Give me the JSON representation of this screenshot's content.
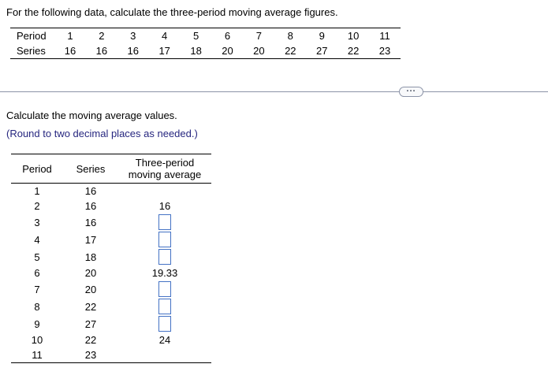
{
  "question": {
    "instruction": "For the following data, calculate the three-period moving average figures.",
    "top_table": {
      "period_label": "Period",
      "series_label": "Series",
      "periods": [
        "1",
        "2",
        "3",
        "4",
        "5",
        "6",
        "7",
        "8",
        "9",
        "10",
        "11"
      ],
      "series": [
        "16",
        "16",
        "16",
        "17",
        "18",
        "20",
        "20",
        "22",
        "27",
        "22",
        "23"
      ]
    }
  },
  "divider": {
    "ellipsis_label": "..."
  },
  "answer_section": {
    "prompt": "Calculate the moving average values.",
    "note": "(Round to two decimal places as needed.)",
    "table": {
      "headers": [
        "Period",
        "Series",
        "Three-period moving average"
      ],
      "rows": [
        {
          "period": "1",
          "series": "16",
          "average": "",
          "input": false
        },
        {
          "period": "2",
          "series": "16",
          "average": "16",
          "input": false
        },
        {
          "period": "3",
          "series": "16",
          "average": "",
          "input": true
        },
        {
          "period": "4",
          "series": "17",
          "average": "",
          "input": true
        },
        {
          "period": "5",
          "series": "18",
          "average": "",
          "input": true
        },
        {
          "period": "6",
          "series": "20",
          "average": "19.33",
          "input": false
        },
        {
          "period": "7",
          "series": "20",
          "average": "",
          "input": true
        },
        {
          "period": "8",
          "series": "22",
          "average": "",
          "input": true
        },
        {
          "period": "9",
          "series": "27",
          "average": "",
          "input": true
        },
        {
          "period": "10",
          "series": "22",
          "average": "24",
          "input": false
        },
        {
          "period": "11",
          "series": "23",
          "average": "",
          "input": false
        }
      ]
    }
  },
  "colors": {
    "note_text": "#26267f",
    "input_border": "#4472c4",
    "divider": "#8b93a7"
  }
}
